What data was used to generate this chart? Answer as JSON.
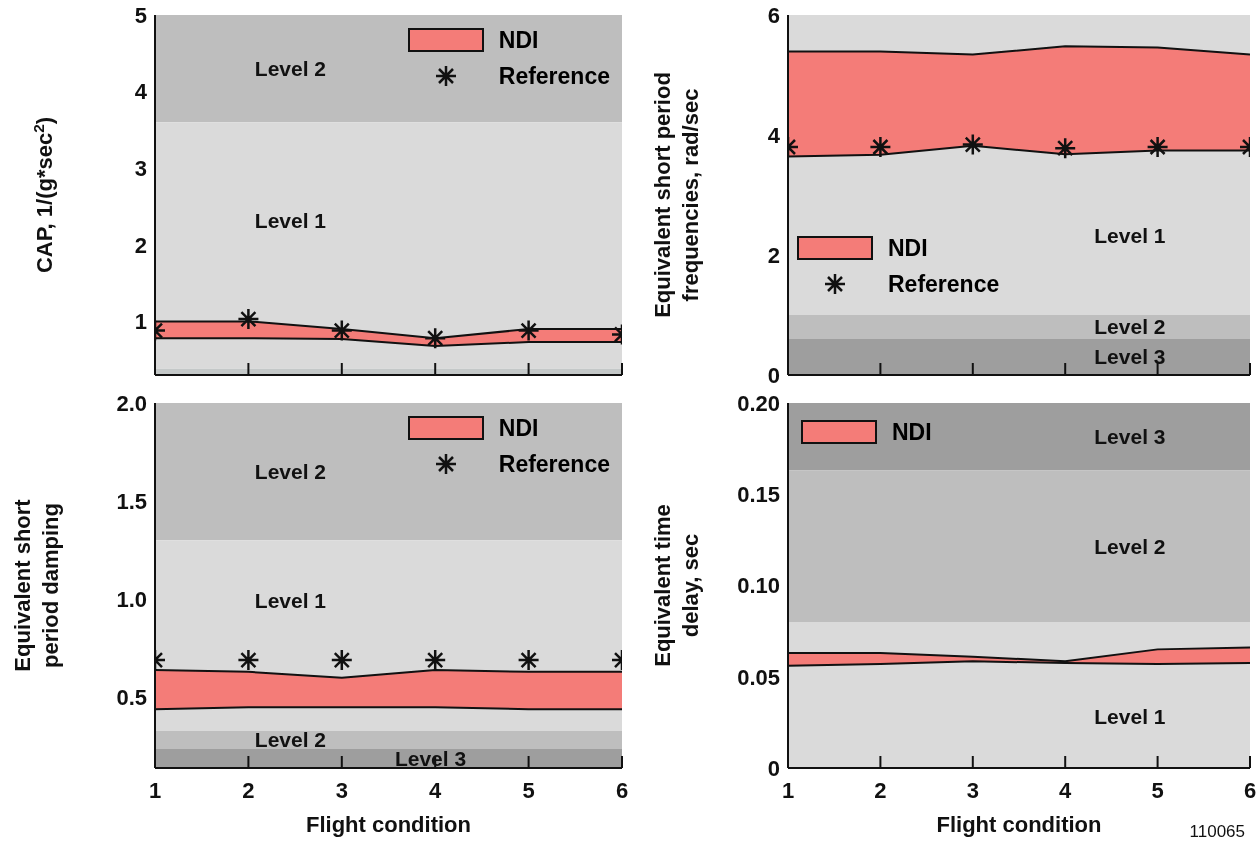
{
  "chart_data": [
    {
      "type": "area",
      "ylabel": "CAP, 1/(g*sec$^{2}$)",
      "x": [
        1,
        2,
        3,
        4,
        5,
        6
      ],
      "xlim": [
        1,
        6
      ],
      "xticks": [
        1,
        2,
        3,
        4,
        5,
        6
      ],
      "ylim": [
        0.3,
        5
      ],
      "yticks": [
        1,
        2,
        3,
        4,
        5
      ],
      "tick_labels": "y",
      "legend": "top right",
      "series": [
        {
          "name": "NDI",
          "type": "area",
          "color": "#f47c78",
          "values": [
            1.0,
            1.0,
            0.9,
            0.78,
            0.9,
            0.9
          ]
        },
        {
          "type": "line",
          "color": "#111111",
          "values": [
            0.78,
            0.78,
            0.77,
            0.68,
            0.73,
            0.73
          ]
        },
        {
          "name": "Reference",
          "type": "scatter",
          "color": "#111111",
          "marker": "cross",
          "values": [
            0.88,
            1.03,
            0.88,
            0.78,
            0.88,
            0.83
          ]
        }
      ],
      "bands": [
        {
          "axis": "y",
          "from": 3.6,
          "to": 5,
          "label": "Level 2",
          "color": "#bebebe"
        },
        {
          "axis": "y",
          "from": 0.38,
          "to": 3.6,
          "label": "Level 1",
          "color": "#dadada"
        },
        {
          "axis": "y",
          "from": 0.3,
          "to": 0.38,
          "color": "#c4c8c8"
        }
      ]
    },
    {
      "type": "area",
      "ylabel": "Equivalent short period\nfrequencies, rad/sec",
      "x": [
        1,
        2,
        3,
        4,
        5,
        6
      ],
      "xlim": [
        1,
        6
      ],
      "xticks": [
        1,
        2,
        3,
        4,
        5,
        6
      ],
      "ylim": [
        0,
        6
      ],
      "yticks": [
        0,
        2,
        4,
        6
      ],
      "tick_labels": "y",
      "legend": "left",
      "series": [
        {
          "name": "NDI",
          "type": "area",
          "color": "#f47c78",
          "values": [
            5.39,
            5.39,
            5.34,
            5.48,
            5.46,
            5.34
          ]
        },
        {
          "type": "line",
          "color": "#111111",
          "values": [
            3.64,
            3.67,
            3.82,
            3.68,
            3.74,
            3.74
          ]
        },
        {
          "name": "Reference",
          "type": "scatter",
          "color": "#111111",
          "marker": "cross",
          "values": [
            3.8,
            3.8,
            3.84,
            3.78,
            3.8,
            3.8
          ]
        }
      ],
      "bands": [
        {
          "axis": "y",
          "from": 1.0,
          "to": 6,
          "label": "Level 1",
          "color": "#dadada"
        },
        {
          "axis": "y",
          "from": 0.6,
          "to": 1.0,
          "label": "Level 2",
          "color": "#bebebe"
        },
        {
          "axis": "y",
          "from": 0,
          "to": 0.6,
          "label": "Level 3",
          "color": "#9e9e9e"
        }
      ]
    },
    {
      "type": "area",
      "ylabel": "Equivalent short\nperiod damping",
      "xlabel": "Flight condition",
      "x": [
        1,
        2,
        3,
        4,
        5,
        6
      ],
      "xlim": [
        1,
        6
      ],
      "xticks": [
        1,
        2,
        3,
        4,
        5,
        6
      ],
      "ylim": [
        0.14,
        2.0
      ],
      "yticks": [
        {
          "value": 0.5,
          "label": "0.5"
        },
        {
          "value": 1.0,
          "label": "1.0"
        },
        {
          "value": 1.5,
          "label": "1.5"
        },
        {
          "value": 2.0,
          "label": "2.0"
        }
      ],
      "legend": "top right",
      "series": [
        {
          "name": "NDI",
          "type": "area",
          "color": "#f47c78",
          "values": [
            0.64,
            0.63,
            0.6,
            0.64,
            0.63,
            0.63
          ]
        },
        {
          "type": "line",
          "color": "#111111",
          "values": [
            0.44,
            0.45,
            0.45,
            0.45,
            0.44,
            0.44
          ]
        },
        {
          "name": "Reference",
          "type": "scatter",
          "color": "#111111",
          "marker": "cross",
          "values": [
            0.69,
            0.69,
            0.69,
            0.69,
            0.69,
            0.69
          ]
        }
      ],
      "bands": [
        {
          "axis": "y",
          "from": 1.3,
          "to": 2.0,
          "label": "Level 2",
          "color": "#bebebe"
        },
        {
          "axis": "y",
          "from": 0.33,
          "to": 1.3,
          "label": "Level 1",
          "color": "#dadada"
        },
        {
          "axis": "y",
          "from": 0.24,
          "to": 0.33,
          "label": "Level 2",
          "color": "#bebebe"
        },
        {
          "axis": "y",
          "from": 0.14,
          "to": 0.24,
          "label": "Level 3",
          "color": "#9e9e9e"
        }
      ]
    },
    {
      "type": "area",
      "ylabel": "Equivalent time\ndelay, sec",
      "xlabel": "Flight condition",
      "x": [
        1,
        2,
        3,
        4,
        5,
        6
      ],
      "xlim": [
        1,
        6
      ],
      "xticks": [
        1,
        2,
        3,
        4,
        5,
        6
      ],
      "ylim": [
        0,
        0.2
      ],
      "yticks": [
        0,
        {
          "value": 0.05,
          "label": "0.05"
        },
        {
          "value": 0.1,
          "label": "0.10"
        },
        {
          "value": 0.15,
          "label": "0.15"
        },
        {
          "value": 0.2,
          "label": "0.20"
        }
      ],
      "legend": "top left",
      "series": [
        {
          "name": "NDI",
          "type": "area",
          "color": "#f47c78",
          "values": [
            0.063,
            0.063,
            0.061,
            0.0585,
            0.065,
            0.066
          ]
        },
        {
          "type": "line",
          "color": "#111111",
          "values": [
            0.056,
            0.057,
            0.0585,
            0.0575,
            0.057,
            0.0575
          ]
        }
      ],
      "bands": [
        {
          "axis": "y",
          "from": 0.163,
          "to": 0.2,
          "label": "Level 3",
          "color": "#9e9e9e"
        },
        {
          "axis": "y",
          "from": 0.08,
          "to": 0.163,
          "label": "Level 2",
          "color": "#bebebe"
        },
        {
          "axis": "y",
          "from": 0,
          "to": 0.08,
          "label": "Level 1",
          "color": "#dadada"
        }
      ],
      "annotations": [
        "110065"
      ]
    }
  ]
}
